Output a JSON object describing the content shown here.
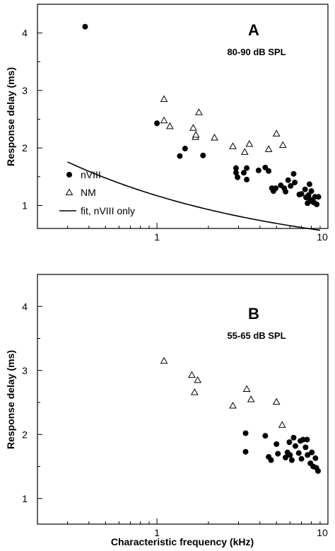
{
  "chart_data": [
    {
      "type": "scatter",
      "panel_label": "A",
      "subtitle": "80-90 dB SPL",
      "ylabel": "Response delay (ms)",
      "xlabel": "",
      "xscale": "log",
      "xlim": [
        0.2,
        10
      ],
      "ylim": [
        0.6,
        4.5
      ],
      "xticks": [
        1,
        10
      ],
      "yticks": [
        1,
        2,
        3,
        4
      ],
      "legend": {
        "placement": "bottom-left",
        "entries": [
          "nVIII",
          "NM",
          "fit, nVIII only"
        ]
      },
      "series": [
        {
          "name": "nVIII",
          "marker": "filled-circle",
          "points": [
            [
              0.38,
              4.11
            ],
            [
              1.0,
              2.43
            ],
            [
              1.36,
              1.86
            ],
            [
              1.46,
              1.99
            ],
            [
              1.86,
              1.87
            ],
            [
              2.9,
              1.65
            ],
            [
              2.9,
              1.57
            ],
            [
              2.96,
              1.49
            ],
            [
              3.22,
              1.57
            ],
            [
              3.35,
              1.65
            ],
            [
              3.35,
              1.45
            ],
            [
              3.93,
              1.61
            ],
            [
              4.3,
              1.66
            ],
            [
              4.5,
              1.6
            ],
            [
              4.7,
              1.3
            ],
            [
              4.8,
              1.25
            ],
            [
              4.95,
              1.3
            ],
            [
              5.3,
              1.35
            ],
            [
              5.55,
              1.3
            ],
            [
              5.65,
              1.24
            ],
            [
              5.85,
              1.44
            ],
            [
              6.05,
              1.34
            ],
            [
              6.3,
              1.55
            ],
            [
              6.4,
              1.4
            ],
            [
              6.8,
              1.19
            ],
            [
              7.0,
              1.2
            ],
            [
              7.35,
              1.28
            ],
            [
              7.45,
              1.14
            ],
            [
              7.6,
              1.04
            ],
            [
              7.7,
              1.18
            ],
            [
              7.8,
              1.37
            ],
            [
              7.9,
              1.1
            ],
            [
              8.0,
              1.25
            ],
            [
              8.1,
              1.07
            ],
            [
              8.3,
              1.05
            ],
            [
              8.4,
              1.15
            ],
            [
              8.6,
              1.02
            ],
            [
              8.8,
              1.15
            ]
          ]
        },
        {
          "name": "NM",
          "marker": "open-triangle",
          "points": [
            [
              1.1,
              2.85
            ],
            [
              1.1,
              2.48
            ],
            [
              1.19,
              2.38
            ],
            [
              1.63,
              2.35
            ],
            [
              1.68,
              2.19
            ],
            [
              1.69,
              2.23
            ],
            [
              1.76,
              2.62
            ],
            [
              2.17,
              2.18
            ],
            [
              2.78,
              2.03
            ],
            [
              3.26,
              1.93
            ],
            [
              3.47,
              2.07
            ],
            [
              4.5,
              1.98
            ],
            [
              5.0,
              2.25
            ],
            [
              5.45,
              2.05
            ]
          ]
        },
        {
          "name": "fit, nVIII only",
          "marker": "line",
          "function": "1.12 / x^0.35 + 0.05",
          "x_range": [
            0.3,
            9
          ]
        }
      ]
    },
    {
      "type": "scatter",
      "panel_label": "B",
      "subtitle": "55-65 dB SPL",
      "ylabel": "Response delay (ms)",
      "xlabel": "Characteristic frequency (kHz)",
      "xscale": "log",
      "xlim": [
        0.2,
        10
      ],
      "ylim": [
        0.6,
        4.5
      ],
      "xticks": [
        1,
        10
      ],
      "yticks": [
        1,
        2,
        3,
        4
      ],
      "series": [
        {
          "name": "nVIII",
          "marker": "filled-circle",
          "points": [
            [
              3.3,
              2.02
            ],
            [
              3.3,
              1.73
            ],
            [
              4.3,
              1.98
            ],
            [
              4.5,
              1.65
            ],
            [
              4.65,
              1.6
            ],
            [
              5.0,
              1.85
            ],
            [
              5.1,
              1.7
            ],
            [
              5.65,
              1.64
            ],
            [
              5.8,
              1.72
            ],
            [
              5.95,
              1.88
            ],
            [
              6.0,
              1.68
            ],
            [
              6.15,
              1.6
            ],
            [
              6.3,
              1.95
            ],
            [
              6.45,
              1.82
            ],
            [
              6.75,
              1.71
            ],
            [
              6.9,
              1.9
            ],
            [
              7.0,
              1.62
            ],
            [
              7.15,
              1.92
            ],
            [
              7.4,
              1.8
            ],
            [
              7.55,
              1.92
            ],
            [
              7.6,
              1.68
            ],
            [
              7.9,
              1.55
            ],
            [
              8.05,
              1.72
            ],
            [
              8.2,
              1.5
            ],
            [
              8.45,
              1.63
            ],
            [
              8.55,
              1.48
            ],
            [
              8.75,
              1.43
            ]
          ]
        },
        {
          "name": "NM",
          "marker": "open-triangle",
          "points": [
            [
              1.1,
              3.15
            ],
            [
              1.6,
              2.93
            ],
            [
              1.66,
              2.66
            ],
            [
              1.73,
              2.85
            ],
            [
              2.78,
              2.45
            ],
            [
              3.35,
              2.71
            ],
            [
              3.55,
              2.55
            ],
            [
              5.0,
              2.51
            ],
            [
              5.4,
              2.15
            ]
          ]
        }
      ]
    }
  ]
}
